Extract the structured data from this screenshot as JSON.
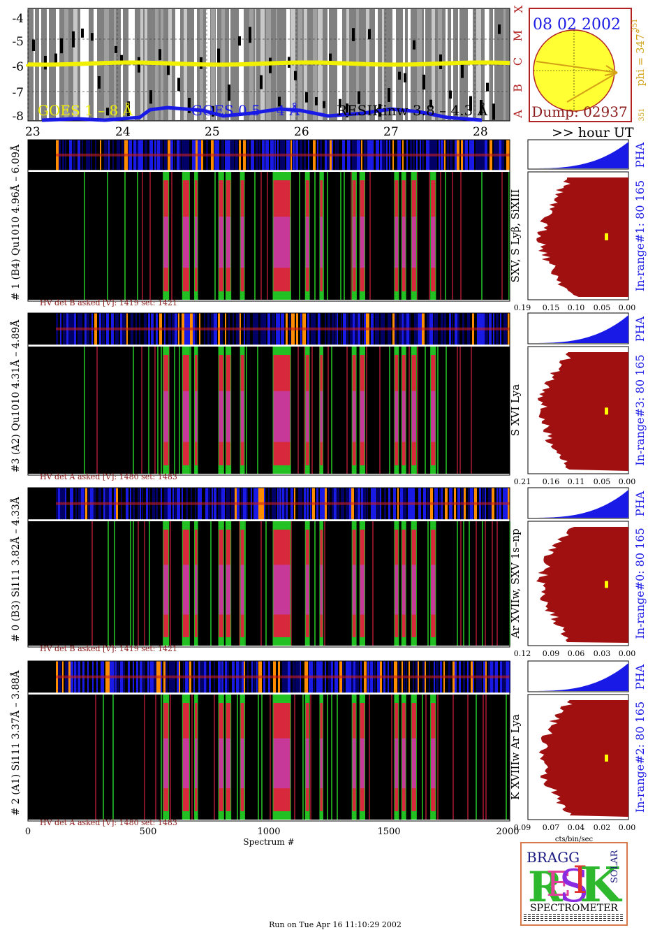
{
  "goes_panel": {
    "y_ticks": [
      "-4",
      "-5",
      "-6",
      "-7",
      "-8"
    ],
    "flare_classes": [
      "X",
      "M",
      "C",
      "B",
      "A"
    ],
    "legend_goes_long": "GOES 1 – 8 Å",
    "legend_goes_short": "GOES 0.5 – 4 Å",
    "legend_resik": "RESIKinw 3.8 – 4.3 Å",
    "hour_ticks": [
      "23",
      "24",
      "25",
      "26",
      "27",
      "28"
    ],
    "hour_unit_label": ">> hour UT",
    "colors": {
      "goes_long": "#f0f000",
      "goes_short": "#1a1ae6",
      "resik": "#000000",
      "background": "#808080"
    }
  },
  "sun_panel": {
    "date": "08 02 2002",
    "dump": "Dump: 02937",
    "phi_label": "phi = 347°",
    "phi_superscript": "351",
    "phi_lower": "351",
    "colors": {
      "disk": "#ffff33",
      "border": "#b22222",
      "arrow": "#d4a017"
    }
  },
  "detectors": [
    {
      "channel_label": "# 1  (B4)  Qu1010  4.96Å – 6.09Å",
      "lines_label": "SXV, S Lyβ, SiXIII",
      "hv_text": "HV det B asked [V]:  1419  set:  1421",
      "pha_label": "PHA",
      "inrange_label": "In-range#1:   80 165",
      "pha_x_ticks": [
        "0.19",
        "0.15",
        "0.10",
        "0.05",
        "0.00"
      ]
    },
    {
      "channel_label": "#3  (A2)  Qu1010  4.31Å – 4.89Å",
      "lines_label": "S XVI Lya",
      "hv_text": "HV det A asked [V]:  1480  set:  1483",
      "pha_label": "PHA",
      "inrange_label": "In-range#3:   80 165",
      "pha_x_ticks": [
        "0.21",
        "0.16",
        "0.11",
        "0.05",
        "0.00"
      ]
    },
    {
      "channel_label": "# 0  (B3)  Si111  3.82Å – 4.33Å",
      "lines_label": "Ar XVIIw,  SXV  1s–np",
      "hv_text": "HV det B asked [V]:  1419  set:  1421",
      "pha_label": "PHA",
      "inrange_label": "In-range#0:   80 165",
      "pha_x_ticks": [
        "0.12",
        "0.09",
        "0.06",
        "0.03",
        "0.00"
      ]
    },
    {
      "channel_label": "# 2  (A1)  Si111  3.37Å – 3.88Å",
      "lines_label": "K XVIIIw  Ar Lya",
      "hv_text": "HV det A asked [V]:  1480  set:  1483",
      "pha_label": "PHA",
      "inrange_label": "In-range#2:   80 165",
      "pha_x_ticks": [
        "0.09",
        "0.07",
        "0.04",
        "0.02",
        "0.00"
      ]
    }
  ],
  "x_axis": {
    "ticks": [
      "0",
      "500",
      "1000",
      "1500",
      "2000"
    ],
    "label": "Spectrum #",
    "pha_axis_label": "cts/bin/sec"
  },
  "logo": {
    "top_letters": "BRAGG",
    "main_letters": "RESIK",
    "side_letters": "SOLAR",
    "word": "SPECTROMETER"
  },
  "footer": {
    "run_text": "Run on Tue Apr 16 11:10:29 2002"
  }
}
